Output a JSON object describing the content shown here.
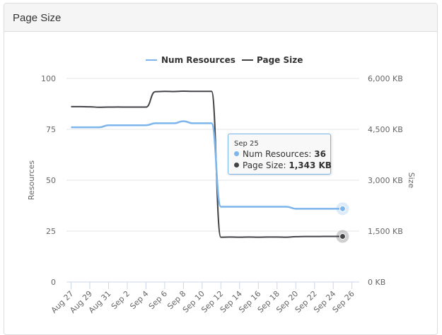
{
  "panel": {
    "title": "Page Size"
  },
  "legend": {
    "items": [
      {
        "label": "Num Resources",
        "color": "#7cb5ec"
      },
      {
        "label": "Page Size",
        "color": "#434348"
      }
    ]
  },
  "axes": {
    "left_title": "Resources",
    "right_title": "Size",
    "left_ticks": [
      "100",
      "75",
      "50",
      "25",
      "0"
    ],
    "right_ticks": [
      "6,000 KB",
      "4,500 KB",
      "3,000 KB",
      "1,500 KB",
      "0 KB"
    ],
    "x_ticks": [
      "Aug 27",
      "Aug 29",
      "Aug 31",
      "Sep 2",
      "Sep 4",
      "Sep 6",
      "Sep 8",
      "Sep 10",
      "Sep 12",
      "Sep 14",
      "Sep 16",
      "Sep 18",
      "Sep 20",
      "Sep 22",
      "Sep 24",
      "Sep 26"
    ]
  },
  "tooltip": {
    "date": "Sep 25",
    "rows": [
      {
        "label": "Num Resources: ",
        "value": "36",
        "color": "#7cb5ec"
      },
      {
        "label": "Page Size: ",
        "value": "1,343 KB",
        "color": "#434348"
      }
    ]
  },
  "chart_data": {
    "type": "line",
    "title": "Page Size",
    "xlabel": "",
    "ylabel": "Resources",
    "ylabel_right": "Size",
    "ylim": [
      0,
      100
    ],
    "ylim_right": [
      0,
      6000
    ],
    "grid": true,
    "legend_position": "top",
    "x": [
      "Aug 27",
      "Aug 28",
      "Aug 29",
      "Aug 30",
      "Aug 31",
      "Sep 1",
      "Sep 2",
      "Sep 3",
      "Sep 4",
      "Sep 5",
      "Sep 6",
      "Sep 7",
      "Sep 8",
      "Sep 9",
      "Sep 10",
      "Sep 11",
      "Sep 12",
      "Sep 13",
      "Sep 14",
      "Sep 15",
      "Sep 16",
      "Sep 17",
      "Sep 18",
      "Sep 19",
      "Sep 20",
      "Sep 21",
      "Sep 22",
      "Sep 23",
      "Sep 24",
      "Sep 25"
    ],
    "series": [
      {
        "name": "Num Resources",
        "axis": "left",
        "unit": "",
        "values": [
          76,
          76,
          76,
          76,
          77,
          77,
          77,
          77,
          77,
          78,
          78,
          78,
          79,
          78,
          78,
          78,
          37,
          37,
          37,
          37,
          37,
          37,
          37,
          37,
          36,
          36,
          36,
          36,
          36,
          36
        ]
      },
      {
        "name": "Page Size",
        "axis": "right",
        "unit": "KB",
        "values": [
          5170,
          5170,
          5165,
          5150,
          5155,
          5160,
          5155,
          5155,
          5155,
          5610,
          5620,
          5615,
          5625,
          5620,
          5620,
          5620,
          1320,
          1325,
          1320,
          1325,
          1320,
          1325,
          1325,
          1320,
          1335,
          1340,
          1340,
          1343,
          1343,
          1343
        ]
      }
    ],
    "annotations": [
      {
        "type": "tooltip",
        "x": "Sep 25",
        "text": "Num Resources: 36; Page Size: 1,343 KB"
      }
    ]
  }
}
